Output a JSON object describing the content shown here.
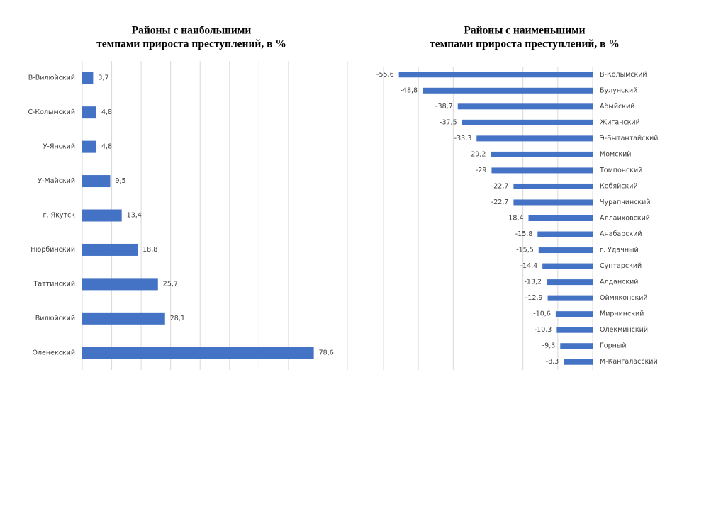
{
  "chart_data": [
    {
      "type": "hbar",
      "title": [
        "Районы с наибольшими",
        "темпами прироста преступлений, в %"
      ],
      "categories": [
        "В-Вилюйский",
        "С-Колымский",
        "У-Янский",
        "У-Майский",
        "г. Якутск",
        "Нюрбинский",
        "Таттинский",
        "Вилюйский",
        "Оленекский"
      ],
      "values": [
        3.7,
        4.8,
        4.8,
        9.5,
        13.4,
        18.8,
        25.7,
        28.1,
        78.6
      ],
      "value_labels": [
        "3,7",
        "4,8",
        "4,8",
        "9,5",
        "13,4",
        "18,8",
        "25,7",
        "28,1",
        "78,6"
      ],
      "color": "#4472c4",
      "xlim": [
        0,
        90
      ],
      "xticks": [
        0,
        10,
        20,
        30,
        40,
        50,
        60,
        70,
        80,
        90
      ],
      "grid": true
    },
    {
      "type": "hbar",
      "title": [
        "Районы с наименьшими",
        "темпами прироста преступлений, в %"
      ],
      "categories": [
        "В-Колымский",
        "Булунский",
        "Абыйский",
        "Жиганский",
        "Э-Бытантайский",
        "Момский",
        "Томпонский",
        "Кобяйский",
        "Чурапчинский",
        "Аллаиховский",
        "Анабарский",
        "г. Удачный",
        "Сунтарский",
        "Алданский",
        "Оймяконский",
        "Мирнинский",
        "Олекминский",
        "Горный",
        "М-Кангаласский"
      ],
      "values": [
        -55.6,
        -48.8,
        -38.7,
        -37.5,
        -33.3,
        -29.2,
        -29,
        -22.7,
        -22.7,
        -18.4,
        -15.8,
        -15.5,
        -14.4,
        -13.2,
        -12.9,
        -10.6,
        -10.3,
        -9.3,
        -8.3
      ],
      "value_labels": [
        "-55,6",
        "-48,8",
        "-38,7",
        "-37,5",
        "-33,3",
        "-29,2",
        "-29",
        "-22,7",
        "-22,7",
        "-18,4",
        "-15,8",
        "-15,5",
        "-14,4",
        "-13,2",
        "-12,9",
        "-10,6",
        "-10,3",
        "-9,3",
        "-8,3"
      ],
      "color": "#4472c4",
      "xlim": [
        -60,
        0
      ],
      "xticks": [
        -60,
        -50,
        -40,
        -30,
        -20,
        -10,
        0
      ],
      "grid": true
    }
  ]
}
